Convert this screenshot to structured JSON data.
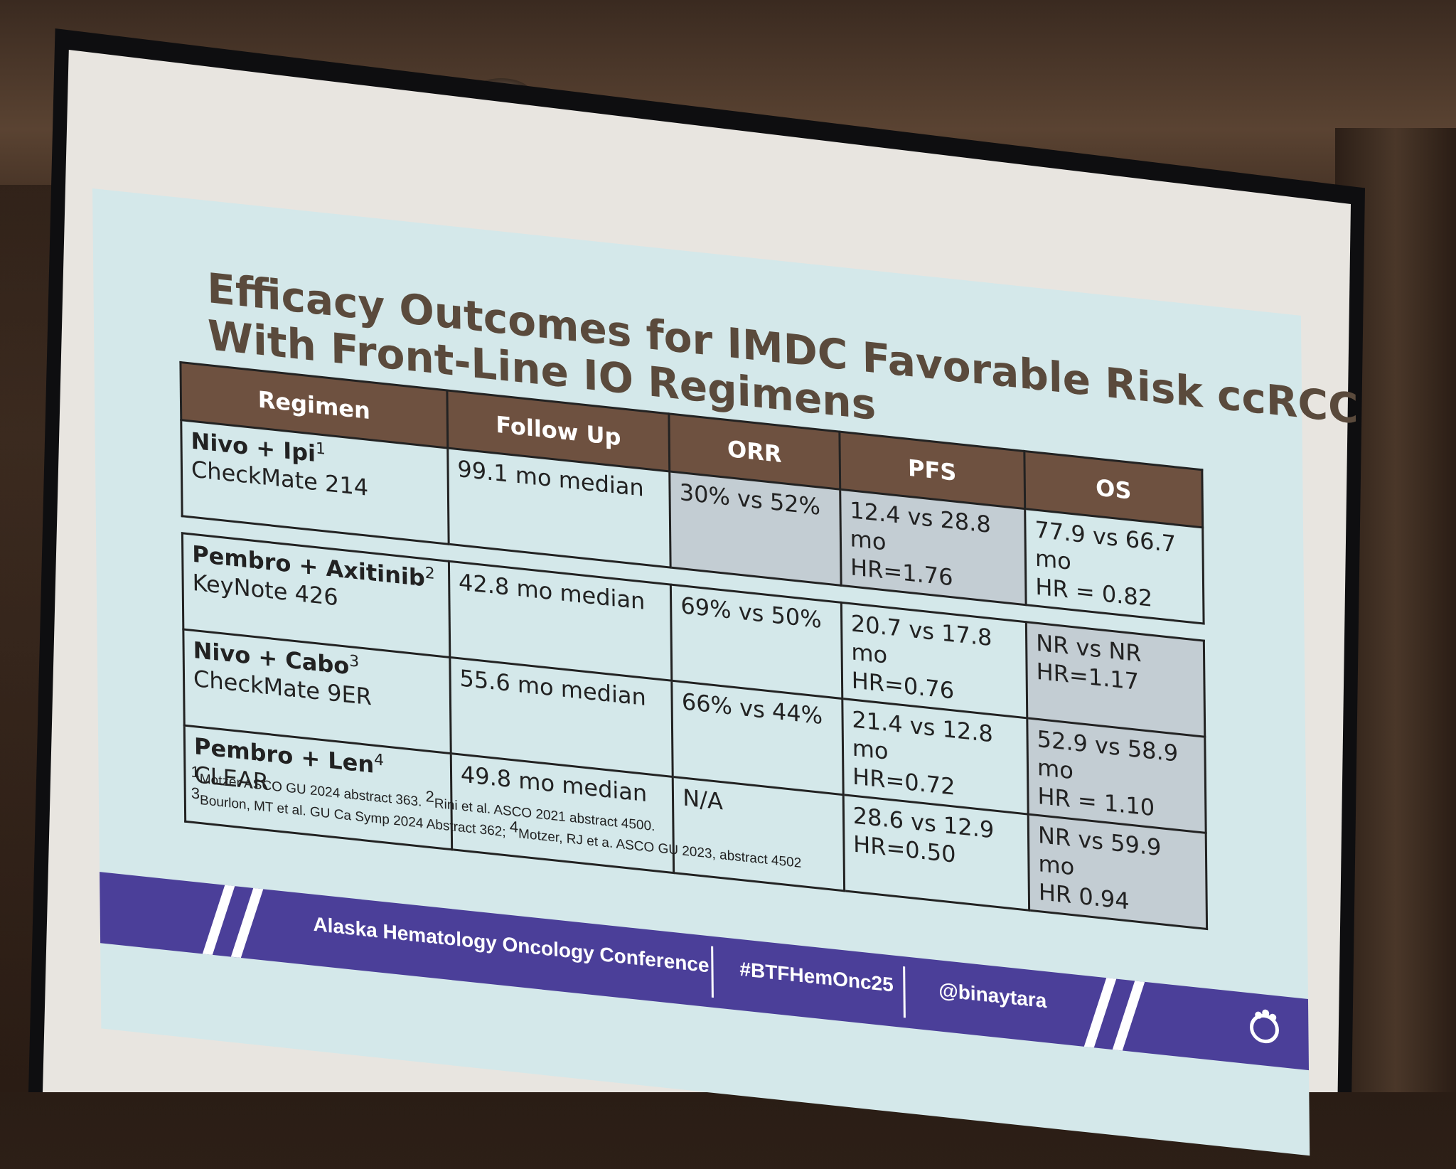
{
  "slide": {
    "title_lines": [
      "Efficacy Outcomes for IMDC Favorable Risk ccRCC",
      "With Front-Line IO Regimens"
    ],
    "headers": [
      "Regimen",
      "Follow Up",
      "ORR",
      "PFS",
      "OS"
    ],
    "rows": [
      {
        "regimen": "Nivo + Ipi",
        "ref": "1",
        "trial": "CheckMate 214",
        "follow_up": "99.1 mo median",
        "orr": "30% vs 52%",
        "pfs_line1": "12.4 vs 28.8 mo",
        "pfs_line2": "HR=1.76",
        "os_line1": "77.9 vs 66.7 mo",
        "os_line2": "HR = 0.82"
      },
      {
        "regimen": "Pembro + Axitinib",
        "ref": "2",
        "trial": "KeyNote 426",
        "follow_up": "42.8 mo median",
        "orr": "69% vs 50%",
        "pfs_line1": "20.7 vs 17.8 mo",
        "pfs_line2": "HR=0.76",
        "os_line1": "NR vs NR",
        "os_line2": "HR=1.17"
      },
      {
        "regimen": "Nivo + Cabo",
        "ref": "3",
        "trial": "CheckMate 9ER",
        "follow_up": "55.6 mo median",
        "orr": "66% vs 44%",
        "pfs_line1": "21.4 vs 12.8 mo",
        "pfs_line2": "HR=0.72",
        "os_line1": "52.9 vs 58.9 mo",
        "os_line2": "HR = 1.10"
      },
      {
        "regimen": "Pembro + Len",
        "ref": "4",
        "trial": "CLEAR",
        "follow_up": "49.8 mo median",
        "orr": "N/A",
        "pfs_line1": "28.6 vs 12.9",
        "pfs_line2": "HR=0.50",
        "os_line1": "NR vs 59.9 mo",
        "os_line2": "HR 0.94"
      }
    ],
    "footnote1": {
      "ref_a": "1",
      "text_a": "Motzer ASCO GU 2024 abstract 363. ",
      "ref_b": "2",
      "text_b": "Rini et al. ASCO 2021 abstract 4500."
    },
    "footnote2": {
      "ref_a": "3",
      "text_a": "Bourlon, MT et al. GU Ca Symp 2024 Abstract 362; ",
      "ref_b": "4",
      "text_b": "Motzer, RJ et a. ASCO GU 2023, abstract 4502"
    },
    "footer": {
      "conference": "Alaska Hematology Oncology Conference",
      "hashtag": "#BTFHemOnc25",
      "handle": "@binaytara",
      "logo_icon": "conference-logo-icon"
    },
    "colors": {
      "header_bg": "#6e5140",
      "slide_bg": "#d4e8ea",
      "shade": "#c3cdd3",
      "footer_bg": "#4b3f99",
      "title": "#5a4a3c"
    }
  }
}
